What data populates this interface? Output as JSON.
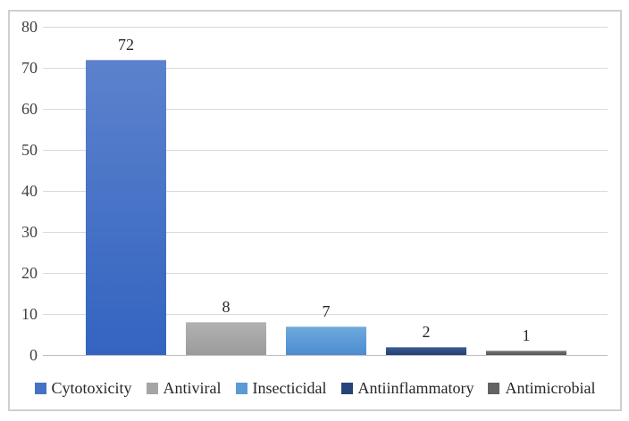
{
  "figure": {
    "background_color": "#ffffff",
    "frame_border_color": "#cfcfcf"
  },
  "chart_data": {
    "type": "bar",
    "title": "",
    "xlabel": "",
    "ylabel": "",
    "categories": [
      "Cytotoxicity",
      "Antiviral",
      "Insecticidal",
      "Antiinflammatory",
      "Antimicrobial"
    ],
    "values": [
      72,
      8,
      7,
      2,
      1
    ],
    "data_labels": [
      "72",
      "8",
      "7",
      "2",
      "1"
    ],
    "ylim": [
      0,
      80
    ],
    "yticks": [
      80,
      70,
      60,
      50,
      40,
      30,
      20,
      10,
      0
    ],
    "grid": true,
    "gridline_color": "#d9d9d9",
    "axis_line_color": "#bfbfbf",
    "tick_label_color": "#3f3f3f",
    "value_label_color": "#262626",
    "legend_position": "bottom",
    "series": [
      {
        "name": "Cytotoxicity",
        "value": 72,
        "color": "#4472C4",
        "gradient_top": "#5c82cd",
        "gradient_bottom": "#3364c0"
      },
      {
        "name": "Antiviral",
        "value": 8,
        "color": "#A5A5A5",
        "gradient_top": "#b2b2b2",
        "gradient_bottom": "#9b9b9b"
      },
      {
        "name": "Insecticidal",
        "value": 7,
        "color": "#5B9BD5",
        "gradient_top": "#6fa9dd",
        "gradient_bottom": "#4c8dd0"
      },
      {
        "name": "Antiinflammatory",
        "value": 2,
        "color": "#264478",
        "gradient_top": "#3c5c94",
        "gradient_bottom": "#223f73"
      },
      {
        "name": "Antimicrobial",
        "value": 1,
        "color": "#636363",
        "gradient_top": "#787878",
        "gradient_bottom": "#545454"
      }
    ]
  }
}
